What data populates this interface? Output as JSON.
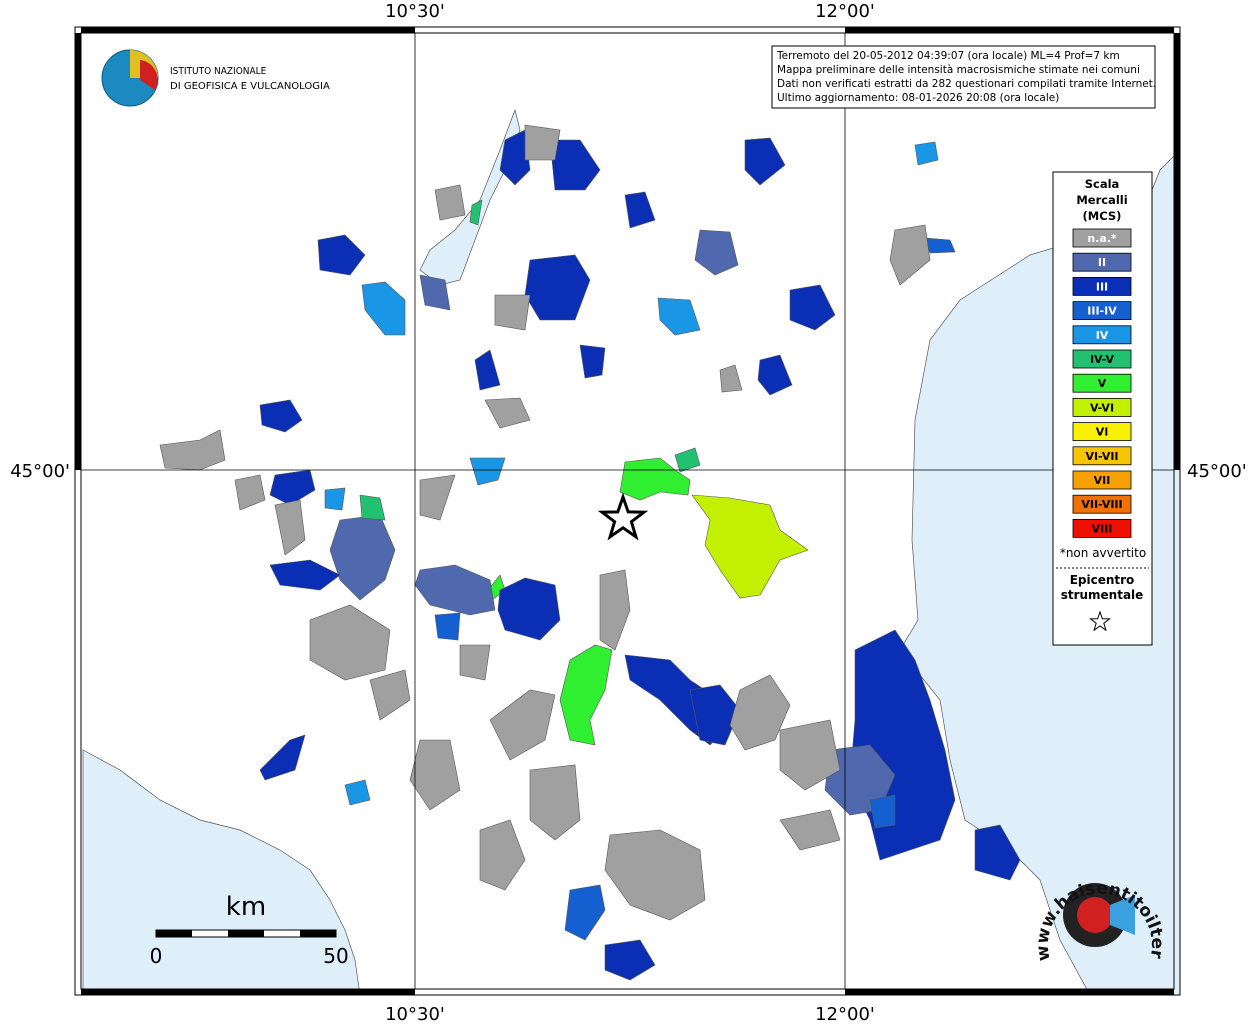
{
  "header": {
    "logo_line1": "ISTITUTO NAZIONALE",
    "logo_line2": "DI GEOFISICA E VULCANOLOGIA"
  },
  "info": [
    "Terremoto del 20-05-2012 04:39:07 (ora locale) ML=4 Prof=7 km",
    "Mappa preliminare delle intensità macrosismiche stimate nei comuni",
    "Dati non verificati estratti da 282 questionari compilati tramite Internet.",
    "Ultimo aggiornamento: 08-01-2026 20:08 (ora locale)"
  ],
  "lon_labels": [
    "10°30'",
    "12°00'"
  ],
  "lat_labels": [
    "45°00'"
  ],
  "legend": {
    "title": [
      "Scala",
      "Mercalli",
      "(MCS)"
    ],
    "items": [
      {
        "label": "n.a.*",
        "color": "#a0a0a0"
      },
      {
        "label": "II",
        "color": "#4f68ae"
      },
      {
        "label": "III",
        "color": "#0a2fb4"
      },
      {
        "label": "III-IV",
        "color": "#1560d0"
      },
      {
        "label": "IV",
        "color": "#1a96e6"
      },
      {
        "label": "IV-V",
        "color": "#22c070"
      },
      {
        "label": "V",
        "color": "#30ee30"
      },
      {
        "label": "V-VI",
        "color": "#c2f000"
      },
      {
        "label": "VI",
        "color": "#f8f000"
      },
      {
        "label": "VI-VII",
        "color": "#f8c400"
      },
      {
        "label": "VII",
        "color": "#f8a000"
      },
      {
        "label": "VII-VIII",
        "color": "#f07000"
      },
      {
        "label": "VIII",
        "color": "#f01000"
      }
    ],
    "note": "*non avvertito",
    "epicenter": [
      "Epicentro",
      "strumentale"
    ]
  },
  "scale_bar": {
    "unit": "km",
    "labels": [
      "0",
      "50"
    ]
  },
  "watermark": "www.haisentitoilterremoto.it"
}
